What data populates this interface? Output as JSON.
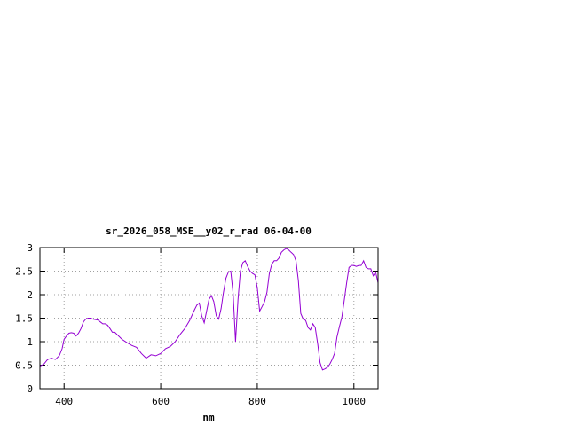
{
  "chart_data": {
    "type": "line",
    "title": "sr_2026_058_MSE__y02_r_rad 06-04-00",
    "xlabel": "nm",
    "ylabel": "",
    "xlim": [
      350,
      1050
    ],
    "ylim": [
      0,
      3
    ],
    "xticks": [
      {
        "value": 400,
        "label": "400"
      },
      {
        "value": 600,
        "label": "600"
      },
      {
        "value": 800,
        "label": "800"
      },
      {
        "value": 1000,
        "label": "1000"
      }
    ],
    "yticks": [
      {
        "value": 0,
        "label": "0"
      },
      {
        "value": 0.5,
        "label": "0.5"
      },
      {
        "value": 1,
        "label": "1"
      },
      {
        "value": 1.5,
        "label": "1.5"
      },
      {
        "value": 2,
        "label": "2"
      },
      {
        "value": 2.5,
        "label": "2.5"
      },
      {
        "value": 3,
        "label": "3"
      }
    ],
    "grid": true,
    "line_color": "#9400d3",
    "series": [
      {
        "x": [
          350,
          358,
          366,
          374,
          382,
          390,
          396,
          400,
          405,
          410,
          415,
          420,
          425,
          430,
          435,
          440,
          445,
          450,
          455,
          460,
          465,
          470,
          475,
          480,
          485,
          490,
          495,
          500,
          505,
          510,
          520,
          530,
          540,
          550,
          560,
          570,
          580,
          590,
          600,
          610,
          620,
          630,
          640,
          650,
          660,
          670,
          675,
          680,
          685,
          690,
          695,
          700,
          705,
          710,
          715,
          720,
          725,
          730,
          735,
          740,
          745,
          750,
          755,
          760,
          765,
          770,
          775,
          780,
          785,
          790,
          795,
          800,
          805,
          810,
          815,
          820,
          825,
          830,
          835,
          840,
          845,
          850,
          855,
          860,
          865,
          870,
          875,
          880,
          885,
          890,
          895,
          900,
          905,
          910,
          915,
          920,
          925,
          930,
          935,
          940,
          945,
          950,
          955,
          960,
          965,
          970,
          975,
          980,
          985,
          990,
          995,
          1000,
          1005,
          1010,
          1015,
          1020,
          1025,
          1030,
          1035,
          1040,
          1045,
          1050
        ],
        "y": [
          0.48,
          0.52,
          0.62,
          0.65,
          0.62,
          0.7,
          0.85,
          1.05,
          1.12,
          1.18,
          1.19,
          1.18,
          1.12,
          1.18,
          1.28,
          1.42,
          1.48,
          1.5,
          1.5,
          1.48,
          1.47,
          1.46,
          1.42,
          1.38,
          1.38,
          1.35,
          1.28,
          1.2,
          1.2,
          1.15,
          1.05,
          0.98,
          0.92,
          0.88,
          0.75,
          0.65,
          0.72,
          0.7,
          0.75,
          0.85,
          0.9,
          1.0,
          1.15,
          1.28,
          1.45,
          1.68,
          1.78,
          1.82,
          1.55,
          1.4,
          1.65,
          1.9,
          1.98,
          1.85,
          1.55,
          1.48,
          1.7,
          2.05,
          2.35,
          2.48,
          2.5,
          2.02,
          1.0,
          1.9,
          2.5,
          2.68,
          2.72,
          2.6,
          2.5,
          2.45,
          2.42,
          2.15,
          1.65,
          1.75,
          1.85,
          2.05,
          2.45,
          2.65,
          2.72,
          2.72,
          2.78,
          2.9,
          2.95,
          2.98,
          2.95,
          2.9,
          2.85,
          2.72,
          2.3,
          1.6,
          1.48,
          1.45,
          1.3,
          1.25,
          1.38,
          1.3,
          0.95,
          0.55,
          0.4,
          0.42,
          0.45,
          0.52,
          0.62,
          0.75,
          1.1,
          1.32,
          1.52,
          1.88,
          2.25,
          2.58,
          2.62,
          2.62,
          2.6,
          2.62,
          2.62,
          2.72,
          2.58,
          2.55,
          2.55,
          2.4,
          2.48,
          2.25
        ]
      }
    ]
  }
}
